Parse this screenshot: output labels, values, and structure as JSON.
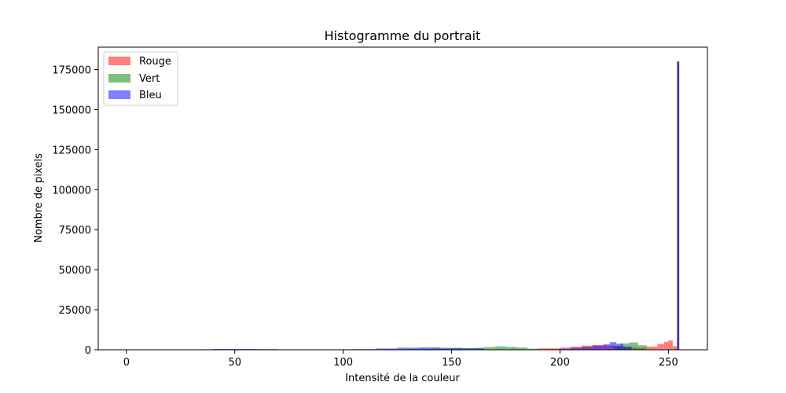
{
  "chart_data": {
    "type": "bar",
    "title": "Histogramme du portrait",
    "xlabel": "Intensité de la couleur",
    "ylabel": "Nombre de pixels",
    "xlim": [
      -13,
      268
    ],
    "ylim": [
      0,
      189000
    ],
    "xticks": [
      0,
      50,
      100,
      150,
      200,
      250
    ],
    "yticks": [
      0,
      25000,
      50000,
      75000,
      100000,
      125000,
      150000,
      175000
    ],
    "grid": false,
    "legend_position": "top-left",
    "bin_width": 1,
    "series": [
      {
        "name": "Rouge",
        "color": "#ff0000",
        "opacity": 0.5,
        "bins": [
          [
            190,
            200,
            900
          ],
          [
            200,
            205,
            1400
          ],
          [
            205,
            210,
            2000
          ],
          [
            210,
            215,
            2600
          ],
          [
            215,
            220,
            3000
          ],
          [
            220,
            225,
            2700
          ],
          [
            225,
            230,
            2200
          ],
          [
            230,
            235,
            1500
          ],
          [
            235,
            240,
            1200
          ],
          [
            240,
            245,
            2000
          ],
          [
            245,
            248,
            3600
          ],
          [
            248,
            250,
            5000
          ],
          [
            250,
            252,
            5800
          ],
          [
            252,
            254,
            2200
          ],
          [
            254,
            255,
            180000
          ]
        ]
      },
      {
        "name": "Vert",
        "color": "#008000",
        "opacity": 0.5,
        "bins": [
          [
            120,
            130,
            300
          ],
          [
            130,
            140,
            500
          ],
          [
            140,
            150,
            700
          ],
          [
            150,
            160,
            900
          ],
          [
            160,
            165,
            1200
          ],
          [
            165,
            170,
            1700
          ],
          [
            170,
            175,
            2100
          ],
          [
            175,
            180,
            1800
          ],
          [
            180,
            185,
            1400
          ],
          [
            185,
            190,
            700
          ],
          [
            225,
            228,
            2500
          ],
          [
            228,
            232,
            4000
          ],
          [
            232,
            236,
            4600
          ],
          [
            236,
            240,
            2800
          ],
          [
            254,
            255,
            180000
          ]
        ]
      },
      {
        "name": "Bleu",
        "color": "#0000ff",
        "opacity": 0.5,
        "bins": [
          [
            33,
            40,
            300
          ],
          [
            40,
            50,
            500
          ],
          [
            50,
            60,
            500
          ],
          [
            60,
            70,
            400
          ],
          [
            95,
            105,
            300
          ],
          [
            105,
            115,
            400
          ],
          [
            115,
            125,
            800
          ],
          [
            125,
            135,
            1300
          ],
          [
            135,
            145,
            1500
          ],
          [
            145,
            155,
            1200
          ],
          [
            155,
            165,
            900
          ],
          [
            200,
            205,
            600
          ],
          [
            205,
            210,
            1200
          ],
          [
            210,
            215,
            1800
          ],
          [
            215,
            220,
            2600
          ],
          [
            220,
            223,
            3400
          ],
          [
            223,
            226,
            4800
          ],
          [
            226,
            229,
            3800
          ],
          [
            229,
            233,
            2000
          ],
          [
            254,
            255,
            180000
          ]
        ]
      }
    ]
  }
}
